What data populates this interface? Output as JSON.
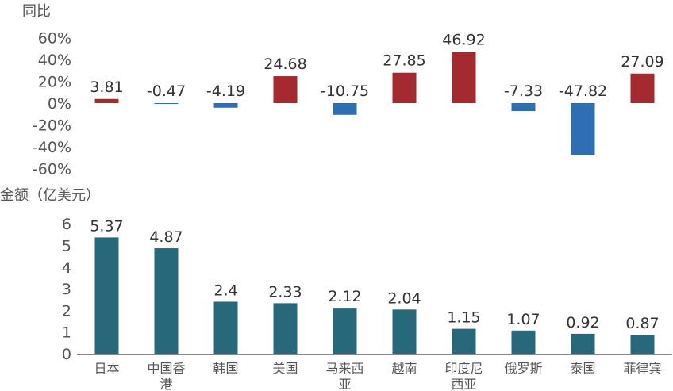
{
  "chart_data": [
    {
      "type": "bar",
      "ylabel": "同比",
      "categories": [
        "日本",
        "中国香港",
        "韩国",
        "美国",
        "马来西亚",
        "越南",
        "印度尼西亚",
        "俄罗斯",
        "泰国",
        "菲律宾"
      ],
      "values": [
        3.81,
        -0.47,
        -4.19,
        24.68,
        -10.75,
        27.85,
        46.92,
        -7.33,
        -47.82,
        27.09
      ],
      "value_labels": [
        "3.81",
        "-0.47",
        "-4.19",
        "24.68",
        "-10.75",
        "27.85",
        "46.92",
        "-7.33",
        "-47.82",
        "27.09"
      ],
      "y_ticks": [
        "60%",
        "40%",
        "20%",
        "0%",
        "-20%",
        "-40%",
        "-60%"
      ],
      "ylim": [
        -60,
        60
      ],
      "grid": false,
      "colors": {
        "positive": "#a52a2f",
        "negative": "#2f6db5"
      }
    },
    {
      "type": "bar",
      "ylabel": "金额（亿美元）",
      "categories": [
        "日本",
        "中国香港",
        "韩国",
        "美国",
        "马来西亚",
        "越南",
        "印度尼西亚",
        "俄罗斯",
        "泰国",
        "菲律宾"
      ],
      "category_label_lines": [
        [
          "日本"
        ],
        [
          "中国香",
          "港"
        ],
        [
          "韩国"
        ],
        [
          "美国"
        ],
        [
          "马来西",
          "亚"
        ],
        [
          "越南"
        ],
        [
          "印度尼",
          "西亚"
        ],
        [
          "俄罗斯"
        ],
        [
          "泰国"
        ],
        [
          "菲律宾"
        ]
      ],
      "values": [
        5.37,
        4.87,
        2.4,
        2.33,
        2.12,
        2.04,
        1.15,
        1.07,
        0.92,
        0.87
      ],
      "value_labels": [
        "5.37",
        "4.87",
        "2.4",
        "2.33",
        "2.12",
        "2.04",
        "1.15",
        "1.07",
        "0.92",
        "0.87"
      ],
      "y_ticks": [
        "6",
        "5",
        "4",
        "3",
        "2",
        "1",
        "0"
      ],
      "ylim": [
        0,
        6
      ],
      "grid": false,
      "colors": {
        "bar": "#27697a",
        "axis": "#888888"
      }
    }
  ]
}
